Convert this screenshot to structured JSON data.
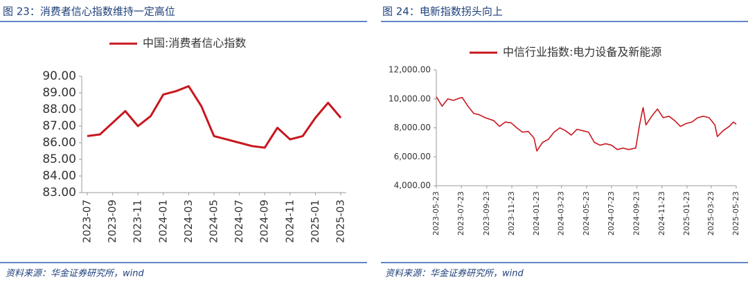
{
  "chart_data": [
    {
      "type": "line",
      "title": "图 23：消费者信心指数维持一定高位",
      "source": "资料来源：华金证券研究所，wind",
      "categories": [
        "2023-07",
        null,
        "2023-09",
        null,
        "2023-11",
        null,
        "2024-01",
        null,
        "2024-03",
        null,
        "2024-05",
        null,
        "2024-07",
        null,
        "2024-09",
        null,
        "2024-11",
        null,
        "2025-01",
        null,
        "2025-03"
      ],
      "series": [
        {
          "name": "中国:消费者信心指数",
          "color": "#c8161d",
          "values": [
            86.4,
            86.5,
            87.2,
            87.9,
            87.0,
            87.6,
            88.9,
            89.1,
            89.4,
            88.2,
            86.4,
            86.2,
            86.0,
            85.8,
            85.7,
            86.9,
            86.2,
            86.4,
            87.5,
            88.4,
            87.5
          ]
        }
      ],
      "ylim": [
        83,
        90
      ],
      "yticks": [
        {
          "value": 83,
          "label": "83.00"
        },
        {
          "value": 84,
          "label": "84.00"
        },
        {
          "value": 85,
          "label": "85.00"
        },
        {
          "value": 86,
          "label": "86.00"
        },
        {
          "value": 87,
          "label": "87.00"
        },
        {
          "value": 88,
          "label": "88.00"
        },
        {
          "value": 89,
          "label": "89.00"
        },
        {
          "value": 90,
          "label": "90.00"
        }
      ],
      "grid": false,
      "legend": "top"
    },
    {
      "type": "line",
      "title": "图 24：电新指数拐头向上",
      "source": "资料来源：华金证券研究所，wind",
      "x": [
        "2023-05-23",
        "2023-06-06",
        "2023-06-20",
        "2023-07-04",
        "2023-07-18",
        "2023-07-25",
        "2023-08-08",
        "2023-08-22",
        "2023-09-05",
        "2023-09-19",
        "2023-10-10",
        "2023-10-24",
        "2023-11-07",
        "2023-11-21",
        "2023-12-05",
        "2023-12-19",
        "2024-01-02",
        "2024-01-16",
        "2024-01-23",
        "2024-02-06",
        "2024-02-20",
        "2024-03-05",
        "2024-03-19",
        "2024-04-02",
        "2024-04-16",
        "2024-04-30",
        "2024-05-14",
        "2024-05-28",
        "2024-06-11",
        "2024-06-25",
        "2024-07-09",
        "2024-07-23",
        "2024-08-06",
        "2024-08-20",
        "2024-09-03",
        "2024-09-20",
        "2024-09-30",
        "2024-10-08",
        "2024-10-15",
        "2024-10-29",
        "2024-11-12",
        "2024-11-26",
        "2024-12-10",
        "2024-12-24",
        "2025-01-07",
        "2025-01-21",
        "2025-02-04",
        "2025-02-18",
        "2025-03-04",
        "2025-03-18",
        "2025-04-01",
        "2025-04-07",
        "2025-04-21",
        "2025-05-06",
        "2025-05-16",
        "2025-05-23"
      ],
      "series": [
        {
          "name": "中信行业指数:电力设备及新能源",
          "color": "#c8161d",
          "values": [
            10150,
            9500,
            10000,
            9900,
            10050,
            10100,
            9500,
            9000,
            8900,
            8700,
            8500,
            8100,
            8400,
            8350,
            8000,
            7700,
            7750,
            7300,
            6400,
            7000,
            7200,
            7700,
            8000,
            7800,
            7500,
            7900,
            7800,
            7700,
            7000,
            6800,
            6900,
            6800,
            6500,
            6600,
            6500,
            6600,
            8300,
            9400,
            8200,
            8800,
            9300,
            8700,
            8800,
            8500,
            8100,
            8300,
            8400,
            8700,
            8800,
            8700,
            8200,
            7400,
            7800,
            8100,
            8400,
            8250
          ]
        }
      ],
      "xlim": [
        "2023-05-23",
        "2025-05-23"
      ],
      "xticks": [
        "2023-05-23",
        "2023-07-23",
        "2023-09-23",
        "2023-11-23",
        "2024-01-23",
        "2024-03-23",
        "2024-05-23",
        "2024-07-23",
        "2024-09-23",
        "2024-11-23",
        "2025-01-23",
        "2025-03-23",
        "2025-05-23"
      ],
      "ylim": [
        4000,
        12000
      ],
      "yticks": [
        {
          "value": 4000,
          "label": "4,000.00"
        },
        {
          "value": 6000,
          "label": "6,000.00"
        },
        {
          "value": 8000,
          "label": "8,000.00"
        },
        {
          "value": 10000,
          "label": "10,000.00"
        },
        {
          "value": 12000,
          "label": "12,000.00"
        }
      ],
      "grid": false,
      "legend": "top"
    }
  ]
}
